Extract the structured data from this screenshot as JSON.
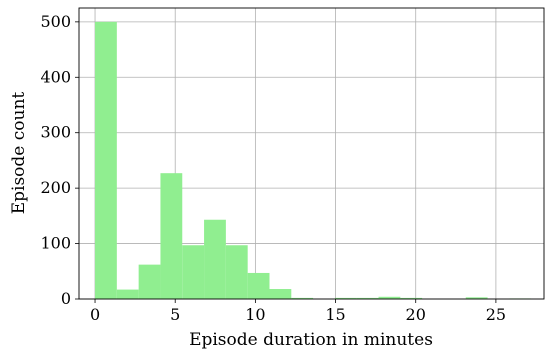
{
  "chart_data": {
    "type": "bar",
    "xlabel": "Episode duration in minutes",
    "ylabel": "Episode count",
    "xlim": [
      -1,
      28
    ],
    "ylim": [
      0,
      525
    ],
    "xticks": [
      0,
      5,
      10,
      15,
      20,
      25
    ],
    "yticks": [
      0,
      100,
      200,
      300,
      400,
      500
    ],
    "bin_width": 1.36,
    "bins": [
      {
        "x": 0.0,
        "value": 500
      },
      {
        "x": 1.36,
        "value": 17
      },
      {
        "x": 2.72,
        "value": 62
      },
      {
        "x": 4.08,
        "value": 227
      },
      {
        "x": 5.44,
        "value": 97
      },
      {
        "x": 6.8,
        "value": 143
      },
      {
        "x": 8.16,
        "value": 97
      },
      {
        "x": 9.52,
        "value": 47
      },
      {
        "x": 10.88,
        "value": 18
      },
      {
        "x": 12.24,
        "value": 2
      },
      {
        "x": 13.6,
        "value": 0
      },
      {
        "x": 14.96,
        "value": 2
      },
      {
        "x": 16.32,
        "value": 2
      },
      {
        "x": 17.68,
        "value": 4
      },
      {
        "x": 19.04,
        "value": 2
      },
      {
        "x": 20.4,
        "value": 0
      },
      {
        "x": 21.76,
        "value": 0
      },
      {
        "x": 23.12,
        "value": 3
      },
      {
        "x": 24.48,
        "value": 0
      },
      {
        "x": 25.84,
        "value": 1
      }
    ],
    "grid": true,
    "bar_color": "#90ee90"
  }
}
